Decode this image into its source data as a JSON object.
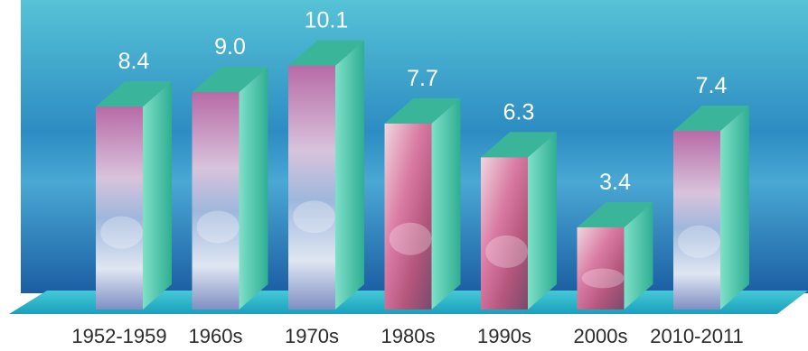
{
  "chart_data": {
    "type": "bar",
    "categories": [
      "1952-1959",
      "1960s",
      "1970s",
      "1980s",
      "1990s",
      "2000s",
      "2010-2011"
    ],
    "values": [
      8.4,
      9.0,
      10.1,
      7.7,
      6.3,
      3.4,
      7.4
    ],
    "value_labels": [
      "8.4",
      "9.0",
      "10.1",
      "7.7",
      "6.3",
      "3.4",
      "7.4"
    ],
    "title": "",
    "xlabel": "",
    "ylabel": "",
    "ylim": [
      0,
      10.5
    ],
    "grid": false,
    "legend": "none",
    "colors": {
      "background_top": "#4ab8cf",
      "background_bottom": "#1a63a6",
      "floor": "#2bb8c9",
      "bar_side": "#3fc4a4",
      "bar_top": "#3bb59a",
      "value_text": "#ffffff",
      "category_text": "#2b2b2b"
    }
  }
}
